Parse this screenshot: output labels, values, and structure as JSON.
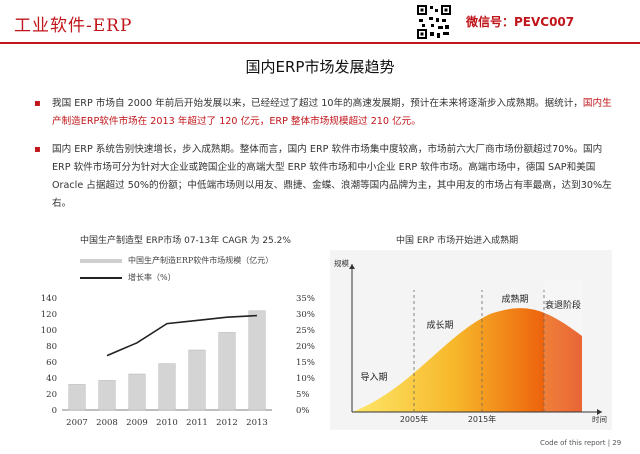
{
  "header": {
    "title": "工业软件-ERP",
    "wechat": "微信号：PEVC007"
  },
  "page_title": "国内ERP市场发展趋势",
  "bullets": [
    {
      "segments": [
        {
          "text": "我国 ERP 市场自 2000 年前后开始发展以来，已经经过了超过 10年的高速发展期，预计在未来将逐渐步入成熟期。据统计，",
          "red": false
        },
        {
          "text": "国内生产制造ERP软件市场在 2013 年超过了 120 亿元，ERP 整体市场规模超过 210 亿元。",
          "red": true
        }
      ]
    },
    {
      "segments": [
        {
          "text": "国内 ERP 系统告别快速增长，步入成熟期。整体而言，国内 ERP 软件市场集中度较高，市场前六大厂商市场份额超过70%。国内 ERP 软件市场可分为针对大企业或跨国企业的高端大型 ERP 软件市场和中小企业 ERP 软件市场。高端市场中，德国 SAP和美国 Oracle 占据超过 50%的份额；中低端市场则以用友、鼎捷、金蝶、浪潮等国内品牌为主，其中用友的市场占有率最高，达到30%左右。",
          "red": false
        }
      ]
    }
  ],
  "chart_data": [
    {
      "type": "bar",
      "title": "中国生产制造型 ERP市场 07-13年 CAGR 为 25.2%",
      "legend": [
        "中国生产制造ERP软件市场规模（亿元）",
        "增长率（%）"
      ],
      "categories": [
        "2007",
        "2008",
        "2009",
        "2010",
        "2011",
        "2012",
        "2013"
      ],
      "series": [
        {
          "name": "中国生产制造ERP软件市场规模（亿元）",
          "values": [
            32,
            37,
            45,
            58,
            75,
            97,
            124
          ],
          "color": "#d4d4d4"
        },
        {
          "name": "增长率（%）",
          "values": [
            null,
            17,
            21,
            27,
            28,
            29,
            29.5
          ],
          "color": "#222222"
        }
      ],
      "y_left": {
        "min": 0,
        "max": 140,
        "ticks": [
          "0",
          "20",
          "40",
          "60",
          "80",
          "100",
          "120",
          "140"
        ]
      },
      "y_right": {
        "min": 0,
        "max": 35,
        "ticks": [
          "0%",
          "5%",
          "10%",
          "15%",
          "20%",
          "25%",
          "30%",
          "35%"
        ]
      }
    },
    {
      "type": "area",
      "title": "中国 ERP 市场开始进入成熟期",
      "ylabel": "规模",
      "xlabel": "时间",
      "x_ticks": [
        "2005年",
        "2015年"
      ],
      "phases": [
        "导入期",
        "成长期",
        "成熟期",
        "衰退阶段"
      ]
    }
  ],
  "footer": "Code of this report  |  29"
}
